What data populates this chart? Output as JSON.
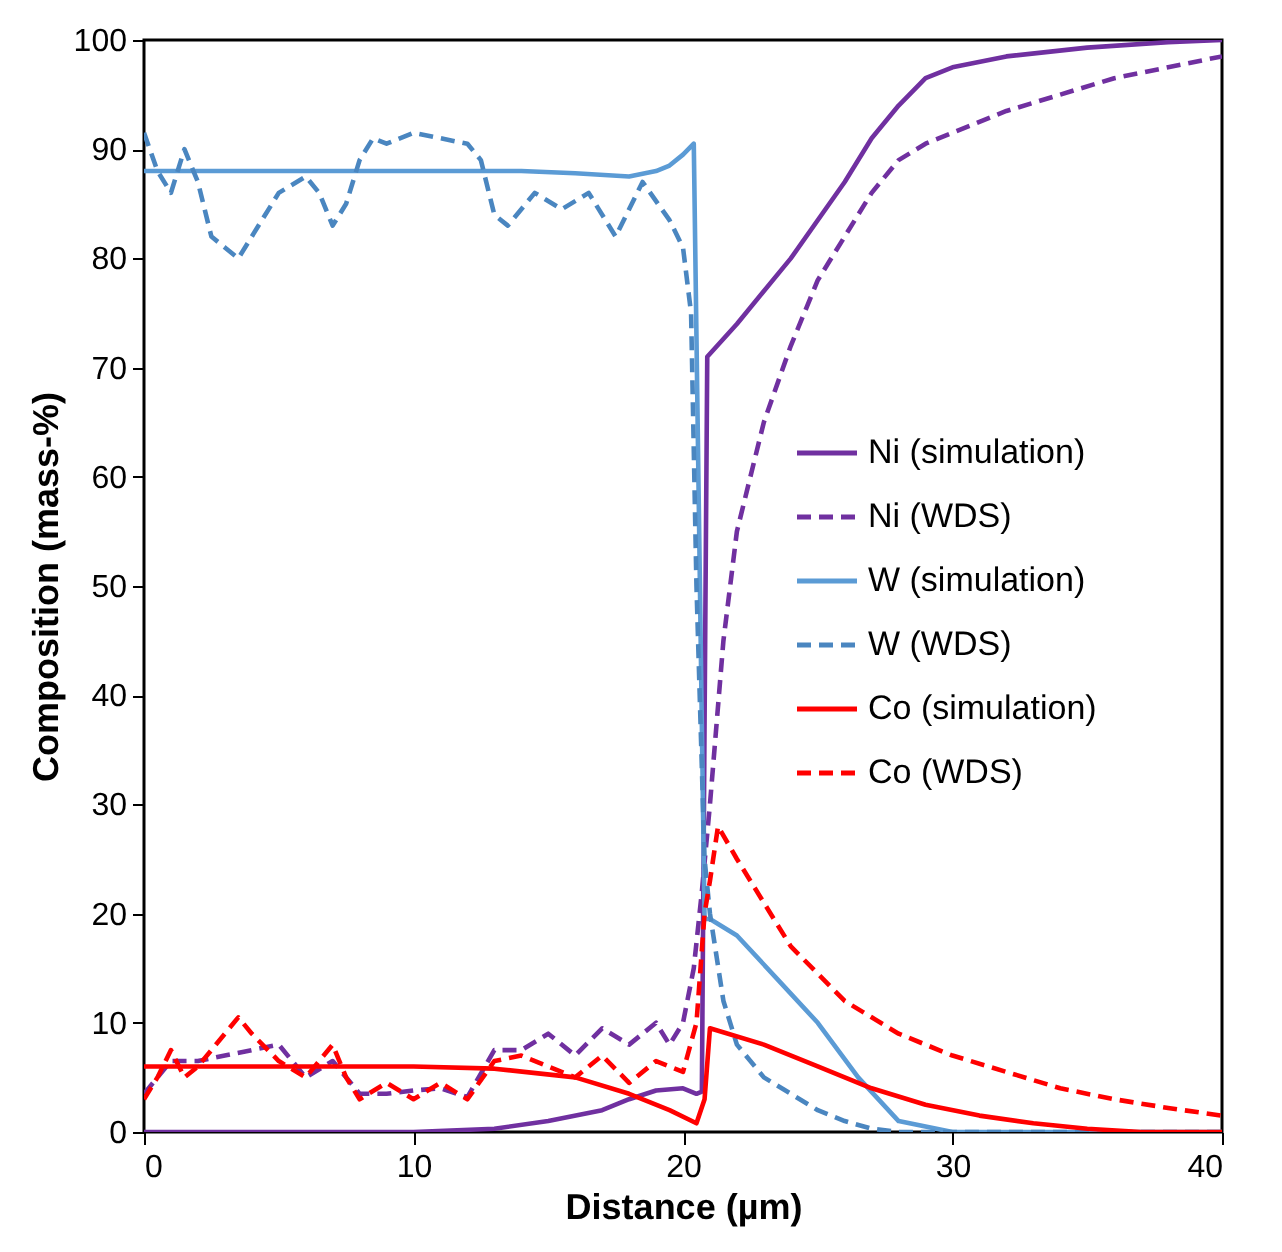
{
  "chart_data": {
    "type": "line",
    "xlabel": "Distance (µm)",
    "ylabel": "Composition (mass-%)",
    "xlim": [
      0,
      40
    ],
    "xticks": [
      0,
      10,
      20,
      30,
      40
    ],
    "ylim": [
      0,
      100
    ],
    "yticks": [
      0,
      10,
      20,
      30,
      40,
      50,
      60,
      70,
      80,
      90,
      100
    ],
    "grid": false,
    "legend": "right",
    "marker": "none",
    "series": [
      {
        "name": "Ni (simulation)",
        "color": "#7030a0",
        "line_style": "solid",
        "x": [
          0,
          10,
          13,
          15,
          17,
          18,
          19,
          20,
          20.5,
          20.7,
          20.9,
          22,
          24,
          26,
          27,
          28,
          29,
          30,
          32,
          35,
          38,
          40
        ],
        "values": [
          0,
          0,
          0.3,
          1,
          2,
          3,
          3.8,
          4,
          3.5,
          3.7,
          71,
          74,
          80,
          87,
          91,
          94,
          96.5,
          97.5,
          98.5,
          99.3,
          99.8,
          100
        ]
      },
      {
        "name": "Ni (WDS)",
        "color": "#7030a0",
        "line_style": "dashed",
        "x": [
          0,
          0.5,
          1,
          2,
          3,
          4,
          5,
          6,
          7,
          8,
          9,
          10,
          11,
          12,
          13,
          14,
          15,
          16,
          17,
          18,
          19,
          19.5,
          20,
          20.4,
          20.7,
          21,
          21.5,
          22,
          23,
          24,
          25,
          26,
          27,
          28,
          29,
          30,
          32,
          34,
          36,
          38,
          40
        ],
        "values": [
          3.5,
          5,
          6.5,
          6.5,
          7,
          7.5,
          8,
          5,
          6.5,
          3.5,
          3.5,
          3.8,
          4,
          3.2,
          7.5,
          7.5,
          9,
          7,
          9.5,
          8,
          10,
          8,
          10,
          15,
          22,
          30,
          45,
          55,
          65,
          72,
          78,
          82,
          86,
          89,
          90.5,
          91.5,
          93.5,
          95,
          96.5,
          97.5,
          98.5
        ]
      },
      {
        "name": "W (simulation)",
        "color": "#5b9bd5",
        "line_style": "solid",
        "x": [
          0,
          14,
          16,
          18,
          19,
          19.5,
          20,
          20.4,
          20.8,
          21,
          22,
          23.5,
          25,
          26.5,
          28,
          30,
          40
        ],
        "values": [
          88,
          88,
          87.8,
          87.5,
          88,
          88.5,
          89.5,
          90.5,
          19.5,
          19.5,
          18,
          14,
          10,
          5,
          1,
          0,
          0
        ]
      },
      {
        "name": "W (WDS)",
        "color": "#4a86c0",
        "line_style": "dashed",
        "x": [
          0,
          0.5,
          1,
          1.5,
          2,
          2.5,
          3,
          3.5,
          4,
          5,
          6,
          6.5,
          7,
          7.5,
          8,
          8.5,
          9,
          10,
          11,
          12,
          12.5,
          13,
          13.5,
          14.5,
          15.5,
          16.5,
          17.5,
          18.5,
          19.5,
          20,
          20.3,
          20.5,
          20.8,
          21,
          21.5,
          22,
          23,
          24,
          25,
          26,
          27,
          28,
          40
        ],
        "values": [
          91.5,
          88,
          86,
          90,
          87,
          82,
          81,
          80,
          82,
          86,
          87.5,
          86,
          83,
          85,
          89,
          91,
          90.5,
          91.5,
          91,
          90.5,
          89,
          84,
          83,
          86,
          84.5,
          86,
          82,
          87,
          83.5,
          81,
          75,
          50,
          25,
          20,
          12,
          8,
          5,
          3.5,
          2,
          1,
          0.3,
          0,
          0
        ]
      },
      {
        "name": "Co (simulation)",
        "color": "#ff0000",
        "line_style": "solid",
        "x": [
          0,
          10,
          13,
          16,
          18,
          19.5,
          20.5,
          20.8,
          21,
          23,
          25,
          27,
          29,
          31,
          33,
          35,
          37,
          40
        ],
        "values": [
          6,
          6,
          5.8,
          5,
          3.5,
          2,
          0.8,
          3,
          9.5,
          8,
          6,
          4,
          2.5,
          1.5,
          0.8,
          0.3,
          0,
          0
        ]
      },
      {
        "name": "Co (WDS)",
        "color": "#ff0000",
        "line_style": "dashed",
        "x": [
          0,
          0.5,
          1,
          1.5,
          2,
          3,
          3.5,
          4,
          5,
          6,
          7,
          7.5,
          8,
          9,
          10,
          11,
          12,
          13,
          14,
          15,
          16,
          17,
          18,
          19,
          20,
          20.5,
          20.8,
          21,
          21.3,
          22,
          23,
          24,
          25,
          26,
          27,
          28,
          30,
          32,
          34,
          36,
          38,
          40
        ],
        "values": [
          3,
          5,
          7.5,
          5,
          6,
          9,
          10.5,
          9,
          6.5,
          5,
          8,
          5,
          3,
          4.5,
          3,
          4.5,
          3,
          6.5,
          7,
          6,
          5,
          7,
          4.5,
          6.5,
          5.5,
          10,
          20,
          23,
          28,
          25,
          21,
          17,
          14.5,
          12,
          10.5,
          9,
          7,
          5.5,
          4,
          3,
          2.2,
          1.5
        ]
      }
    ]
  }
}
